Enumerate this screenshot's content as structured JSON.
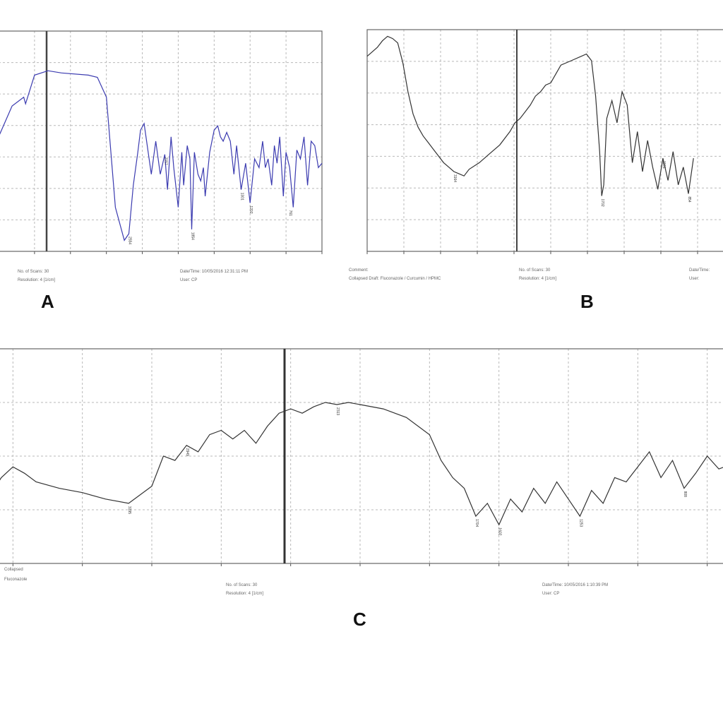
{
  "panel_labels": [
    "A",
    "B",
    "C"
  ],
  "chart_data": [
    {
      "type": "line",
      "panel": "A",
      "color": "#3b3bb0",
      "xlim": [
        4000,
        400
      ],
      "ylim": [
        0,
        100
      ],
      "x": [
        4000,
        3850,
        3720,
        3700,
        3600,
        3450,
        3300,
        3000,
        2900,
        2800,
        2700,
        2600,
        2550,
        2500,
        2450,
        2420,
        2380,
        2300,
        2250,
        2200,
        2150,
        2120,
        2080,
        2050,
        2000,
        1960,
        1940,
        1900,
        1870,
        1850,
        1820,
        1780,
        1750,
        1720,
        1700,
        1650,
        1600,
        1560,
        1530,
        1500,
        1460,
        1420,
        1380,
        1350,
        1300,
        1250,
        1200,
        1150,
        1100,
        1060,
        1030,
        1000,
        960,
        930,
        900,
        870,
        830,
        800,
        760,
        720,
        680,
        640,
        600,
        560,
        520,
        480,
        440,
        400
      ],
      "y": [
        52,
        66,
        70,
        67,
        80,
        82,
        81,
        80,
        79,
        70,
        20,
        5,
        8,
        30,
        45,
        55,
        58,
        35,
        50,
        35,
        44,
        28,
        52,
        38,
        20,
        45,
        30,
        48,
        42,
        10,
        45,
        35,
        32,
        38,
        25,
        45,
        55,
        57,
        52,
        50,
        54,
        50,
        35,
        48,
        28,
        40,
        22,
        42,
        38,
        50,
        38,
        42,
        30,
        48,
        40,
        52,
        25,
        45,
        38,
        20,
        46,
        42,
        52,
        30,
        50,
        48,
        38,
        40
      ],
      "peak_labels": [
        {
          "x": 2550,
          "y": 8,
          "text": "2554"
        },
        {
          "x": 2150,
          "y": 44,
          "text": "2157"
        },
        {
          "x": 1850,
          "y": 10,
          "text": "1854"
        },
        {
          "x": 1300,
          "y": 28,
          "text": "1301"
        },
        {
          "x": 1200,
          "y": 22,
          "text": "1202"
        },
        {
          "x": 760,
          "y": 20,
          "text": "761"
        }
      ]
    },
    {
      "type": "line",
      "panel": "B",
      "color": "#333333",
      "xlim": [
        4000,
        400
      ],
      "ylim": [
        0,
        100
      ],
      "x": [
        4000,
        3950,
        3900,
        3850,
        3800,
        3750,
        3700,
        3650,
        3600,
        3550,
        3500,
        3450,
        3400,
        3350,
        3300,
        3250,
        3200,
        3150,
        3100,
        3050,
        3000,
        2900,
        2800,
        2700,
        2600,
        2550,
        2500,
        2450,
        2400,
        2350,
        2300,
        2250,
        2200,
        2150,
        2100,
        2000,
        1900,
        1850,
        1800,
        1760,
        1720,
        1700,
        1680,
        1650,
        1600,
        1550,
        1500,
        1450,
        1400,
        1350,
        1300,
        1250,
        1200,
        1150,
        1100,
        1050,
        1000,
        950,
        900,
        850,
        800
      ],
      "y": [
        88,
        90,
        92,
        95,
        97,
        96,
        94,
        85,
        72,
        62,
        56,
        52,
        49,
        46,
        43,
        40,
        38,
        36,
        35,
        34,
        37,
        40,
        44,
        48,
        54,
        58,
        60,
        63,
        66,
        70,
        72,
        75,
        76,
        80,
        84,
        86,
        88,
        89,
        86,
        70,
        45,
        25,
        30,
        60,
        68,
        58,
        72,
        66,
        40,
        54,
        36,
        50,
        38,
        28,
        42,
        32,
        45,
        30,
        38,
        26,
        42
      ],
      "peak_labels": [
        {
          "x": 3150,
          "y": 36,
          "text": "3164"
        },
        {
          "x": 1700,
          "y": 25,
          "text": "1702"
        },
        {
          "x": 1100,
          "y": 42,
          "text": "1101"
        },
        {
          "x": 850,
          "y": 26,
          "text": "854"
        }
      ]
    },
    {
      "type": "line",
      "panel": "C",
      "color": "#333333",
      "xlim": [
        4000,
        400
      ],
      "ylim": [
        0,
        100
      ],
      "x": [
        4000,
        3950,
        3900,
        3850,
        3800,
        3780,
        3750,
        3700,
        3650,
        3600,
        3500,
        3400,
        3300,
        3200,
        3100,
        3050,
        3000,
        2950,
        2900,
        2850,
        2800,
        2750,
        2700,
        2650,
        2600,
        2550,
        2500,
        2450,
        2400,
        2350,
        2300,
        2250,
        2200,
        2100,
        2000,
        1900,
        1850,
        1800,
        1750,
        1700,
        1650,
        1600,
        1550,
        1500,
        1450,
        1400,
        1350,
        1300,
        1250,
        1200,
        1150,
        1100,
        1050,
        1000,
        950,
        900,
        850,
        800,
        750,
        700,
        650,
        600,
        550,
        500,
        450,
        400
      ],
      "y": [
        92,
        95,
        96,
        90,
        60,
        35,
        40,
        45,
        42,
        38,
        35,
        33,
        30,
        28,
        36,
        50,
        48,
        55,
        52,
        60,
        62,
        58,
        62,
        56,
        64,
        70,
        72,
        70,
        73,
        75,
        74,
        75,
        74,
        72,
        68,
        60,
        48,
        40,
        35,
        22,
        28,
        18,
        30,
        24,
        35,
        28,
        38,
        30,
        22,
        34,
        28,
        40,
        38,
        45,
        52,
        40,
        48,
        35,
        42,
        50,
        44,
        46,
        38,
        50,
        44,
        52
      ],
      "peak_labels": [
        {
          "x": 3780,
          "y": 35,
          "text": "3774"
        },
        {
          "x": 3200,
          "y": 28,
          "text": "3195"
        },
        {
          "x": 2950,
          "y": 55,
          "text": "2949"
        },
        {
          "x": 2300,
          "y": 74,
          "text": "2313"
        },
        {
          "x": 1700,
          "y": 22,
          "text": "1704"
        },
        {
          "x": 1600,
          "y": 18,
          "text": "1602"
        },
        {
          "x": 1250,
          "y": 22,
          "text": "1253"
        },
        {
          "x": 800,
          "y": 35,
          "text": "808"
        }
      ]
    }
  ]
}
